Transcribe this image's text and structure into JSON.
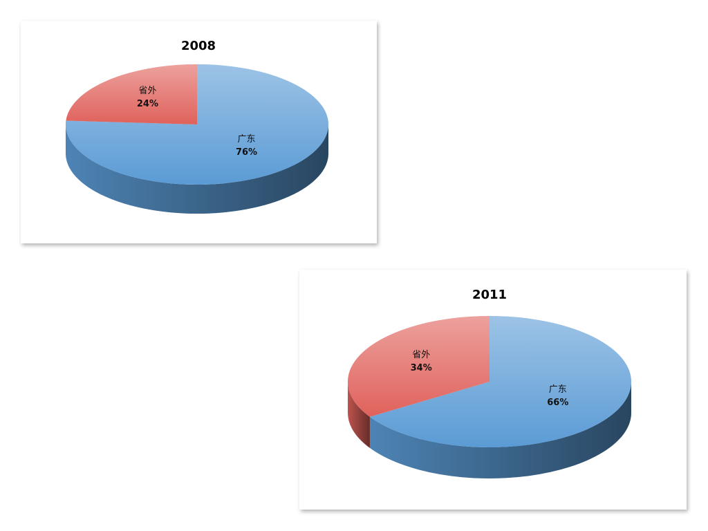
{
  "chart_data": [
    {
      "type": "pie",
      "title": "2008",
      "categories": [
        "广东",
        "省外"
      ],
      "values": [
        76,
        24
      ],
      "value_labels": [
        "76%",
        "24%"
      ],
      "colors": [
        "#5b9bd5",
        "#e0625c"
      ]
    },
    {
      "type": "pie",
      "title": "2011",
      "categories": [
        "广东",
        "省外"
      ],
      "values": [
        66,
        34
      ],
      "value_labels": [
        "66%",
        "34%"
      ],
      "colors": [
        "#5b9bd5",
        "#e0625c"
      ]
    }
  ]
}
